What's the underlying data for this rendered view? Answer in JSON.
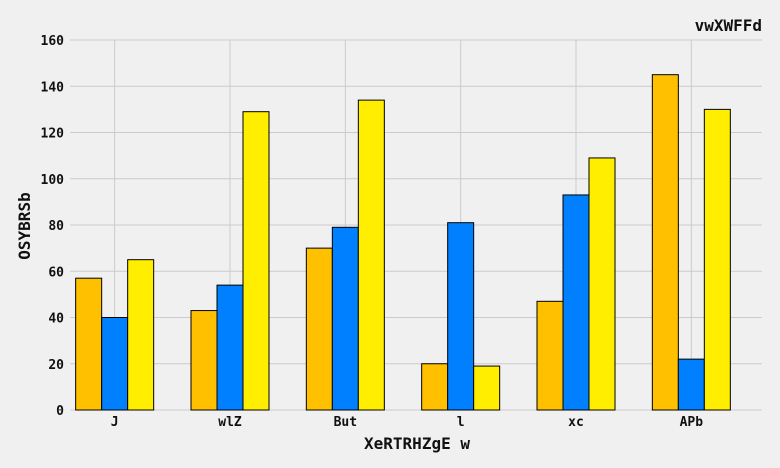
{
  "chart_data": {
    "type": "bar",
    "title": "vwXWFFd",
    "xlabel": "XeRTRHZgE w",
    "ylabel": "OSYBRSb",
    "categories": [
      "J",
      "wlZ",
      "But",
      "l",
      "xc",
      "APb"
    ],
    "series": [
      {
        "color": "#ffc000",
        "values": [
          57,
          43,
          70,
          20,
          47,
          145
        ]
      },
      {
        "color": "#0080ff",
        "values": [
          40,
          54,
          79,
          81,
          93,
          22
        ]
      },
      {
        "color": "#ffee00",
        "values": [
          65,
          129,
          134,
          19,
          109,
          130
        ]
      }
    ],
    "ylim": [
      0,
      160
    ],
    "yticks": [
      0,
      20,
      40,
      60,
      80,
      100,
      120,
      140,
      160
    ],
    "grid": true,
    "legend": "none"
  }
}
